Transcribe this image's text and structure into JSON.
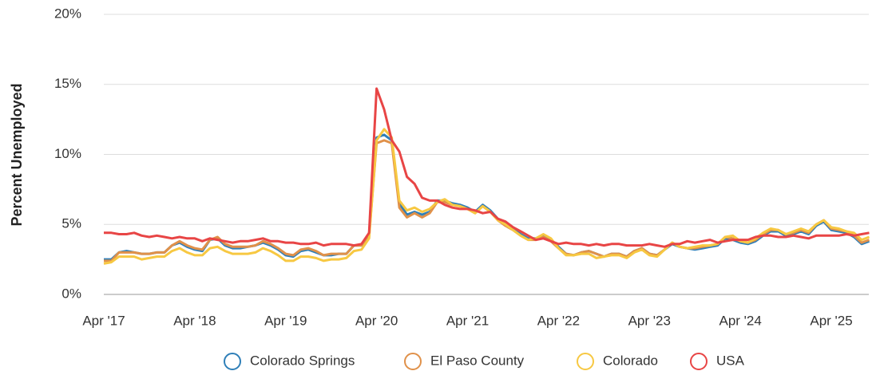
{
  "chart_data": {
    "type": "line",
    "ylabel": "Percent Unemployed",
    "categories": [
      "Apr '17",
      null,
      null,
      null,
      null,
      null,
      null,
      null,
      null,
      null,
      null,
      null,
      "Apr '18",
      null,
      null,
      null,
      null,
      null,
      null,
      null,
      null,
      null,
      null,
      null,
      "Apr '19",
      null,
      null,
      null,
      null,
      null,
      null,
      null,
      null,
      null,
      null,
      null,
      "Apr '20",
      null,
      null,
      null,
      null,
      null,
      null,
      null,
      null,
      null,
      null,
      null,
      "Apr '21",
      null,
      null,
      null,
      null,
      null,
      null,
      null,
      null,
      null,
      null,
      null,
      "Apr '22",
      null,
      null,
      null,
      null,
      null,
      null,
      null,
      null,
      null,
      null,
      null,
      "Apr '23",
      null,
      null,
      null,
      null,
      null,
      null,
      null,
      null,
      null,
      null,
      null,
      "Apr '24",
      null,
      null,
      null,
      null,
      null,
      null,
      null,
      null,
      null,
      null,
      null,
      "Apr '25",
      null,
      null,
      null,
      null,
      null
    ],
    "series": [
      {
        "name": "Colorado Springs",
        "color": "#2f7fb8",
        "values": [
          2.5,
          2.5,
          3.0,
          3.1,
          3.0,
          2.9,
          2.9,
          3.0,
          3.0,
          3.5,
          3.7,
          3.4,
          3.2,
          3.1,
          3.9,
          4.0,
          3.5,
          3.3,
          3.3,
          3.4,
          3.5,
          3.7,
          3.5,
          3.2,
          2.8,
          2.7,
          3.1,
          3.2,
          3.0,
          2.8,
          2.8,
          2.9,
          2.9,
          3.5,
          3.5,
          4.3,
          11.2,
          11.4,
          11.0,
          6.5,
          5.7,
          5.9,
          5.7,
          5.9,
          6.7,
          6.7,
          6.5,
          6.4,
          6.2,
          5.9,
          6.4,
          6.0,
          5.4,
          5.0,
          4.7,
          4.3,
          4.0,
          4.0,
          4.2,
          3.9,
          3.4,
          2.9,
          2.8,
          3.0,
          3.1,
          2.9,
          2.7,
          2.9,
          2.9,
          2.7,
          3.1,
          3.3,
          2.9,
          2.8,
          3.2,
          3.6,
          3.4,
          3.3,
          3.2,
          3.3,
          3.4,
          3.5,
          4.0,
          3.9,
          3.7,
          3.6,
          3.8,
          4.2,
          4.5,
          4.5,
          4.2,
          4.3,
          4.5,
          4.3,
          4.9,
          5.2,
          4.6,
          4.5,
          4.4,
          4.1,
          3.6,
          3.8
        ]
      },
      {
        "name": "El Paso County",
        "color": "#e0914a",
        "values": [
          2.4,
          2.4,
          3.0,
          3.0,
          3.0,
          2.9,
          2.9,
          3.0,
          3.0,
          3.5,
          3.8,
          3.5,
          3.3,
          3.2,
          3.9,
          4.1,
          3.6,
          3.4,
          3.4,
          3.4,
          3.5,
          3.8,
          3.6,
          3.3,
          2.9,
          2.8,
          3.2,
          3.3,
          3.1,
          2.8,
          2.9,
          2.9,
          2.9,
          3.5,
          3.5,
          4.2,
          10.8,
          11.0,
          10.8,
          6.2,
          5.5,
          5.8,
          5.5,
          5.8,
          6.6,
          6.6,
          6.4,
          6.3,
          6.1,
          5.8,
          6.3,
          5.9,
          5.3,
          4.9,
          4.6,
          4.2,
          3.9,
          3.9,
          4.1,
          3.8,
          3.3,
          2.9,
          2.8,
          3.0,
          3.1,
          2.9,
          2.7,
          2.9,
          2.9,
          2.7,
          3.1,
          3.3,
          2.9,
          2.8,
          3.2,
          3.7,
          3.4,
          3.3,
          3.3,
          3.4,
          3.5,
          3.6,
          4.1,
          4.0,
          3.8,
          3.7,
          3.9,
          4.3,
          4.6,
          4.6,
          4.3,
          4.4,
          4.6,
          4.4,
          5.0,
          5.3,
          4.7,
          4.6,
          4.5,
          4.2,
          3.7,
          3.9
        ]
      },
      {
        "name": "Colorado",
        "color": "#f7c842",
        "values": [
          2.2,
          2.3,
          2.7,
          2.7,
          2.7,
          2.5,
          2.6,
          2.7,
          2.7,
          3.1,
          3.3,
          3.0,
          2.8,
          2.8,
          3.3,
          3.4,
          3.1,
          2.9,
          2.9,
          2.9,
          3.0,
          3.3,
          3.1,
          2.8,
          2.4,
          2.4,
          2.7,
          2.7,
          2.6,
          2.4,
          2.5,
          2.5,
          2.6,
          3.1,
          3.2,
          4.0,
          11.0,
          11.8,
          11.2,
          6.7,
          6.0,
          6.2,
          5.9,
          6.1,
          6.6,
          6.8,
          6.4,
          6.3,
          6.1,
          5.8,
          6.3,
          5.9,
          5.3,
          5.0,
          4.6,
          4.2,
          3.9,
          4.0,
          4.3,
          4.0,
          3.3,
          2.8,
          2.8,
          2.9,
          2.9,
          2.6,
          2.7,
          2.8,
          2.8,
          2.6,
          3.0,
          3.2,
          2.8,
          2.7,
          3.2,
          3.7,
          3.4,
          3.3,
          3.4,
          3.5,
          3.5,
          3.6,
          4.1,
          4.2,
          3.8,
          3.7,
          4.0,
          4.4,
          4.7,
          4.6,
          4.3,
          4.5,
          4.7,
          4.5,
          5.0,
          5.3,
          4.8,
          4.7,
          4.5,
          4.4,
          3.9,
          4.1
        ]
      },
      {
        "name": "USA",
        "color": "#e84545",
        "values": [
          4.4,
          4.4,
          4.3,
          4.3,
          4.4,
          4.2,
          4.1,
          4.2,
          4.1,
          4.0,
          4.1,
          4.0,
          4.0,
          3.8,
          4.0,
          3.9,
          3.8,
          3.7,
          3.8,
          3.8,
          3.9,
          4.0,
          3.8,
          3.8,
          3.7,
          3.7,
          3.6,
          3.6,
          3.7,
          3.5,
          3.6,
          3.6,
          3.6,
          3.5,
          3.6,
          4.4,
          14.7,
          13.2,
          11.0,
          10.2,
          8.4,
          7.9,
          6.9,
          6.7,
          6.7,
          6.4,
          6.2,
          6.1,
          6.1,
          6.0,
          5.8,
          5.9,
          5.4,
          5.2,
          4.8,
          4.5,
          4.2,
          3.9,
          4.0,
          3.8,
          3.6,
          3.7,
          3.6,
          3.6,
          3.5,
          3.6,
          3.5,
          3.6,
          3.6,
          3.5,
          3.5,
          3.5,
          3.6,
          3.5,
          3.4,
          3.6,
          3.6,
          3.8,
          3.7,
          3.8,
          3.9,
          3.7,
          3.8,
          3.9,
          3.9,
          3.9,
          4.1,
          4.2,
          4.2,
          4.1,
          4.1,
          4.2,
          4.1,
          4.0,
          4.2,
          4.2,
          4.2,
          4.2,
          4.3,
          4.2,
          4.3,
          4.4
        ]
      }
    ],
    "ylim": [
      0,
      20
    ],
    "yticks": [
      {
        "value": 0,
        "label": "0%"
      },
      {
        "value": 5,
        "label": "5%"
      },
      {
        "value": 10,
        "label": "10%"
      },
      {
        "value": 15,
        "label": "15%"
      },
      {
        "value": 20,
        "label": "20%"
      }
    ],
    "grid": true,
    "legend": "bottom"
  }
}
